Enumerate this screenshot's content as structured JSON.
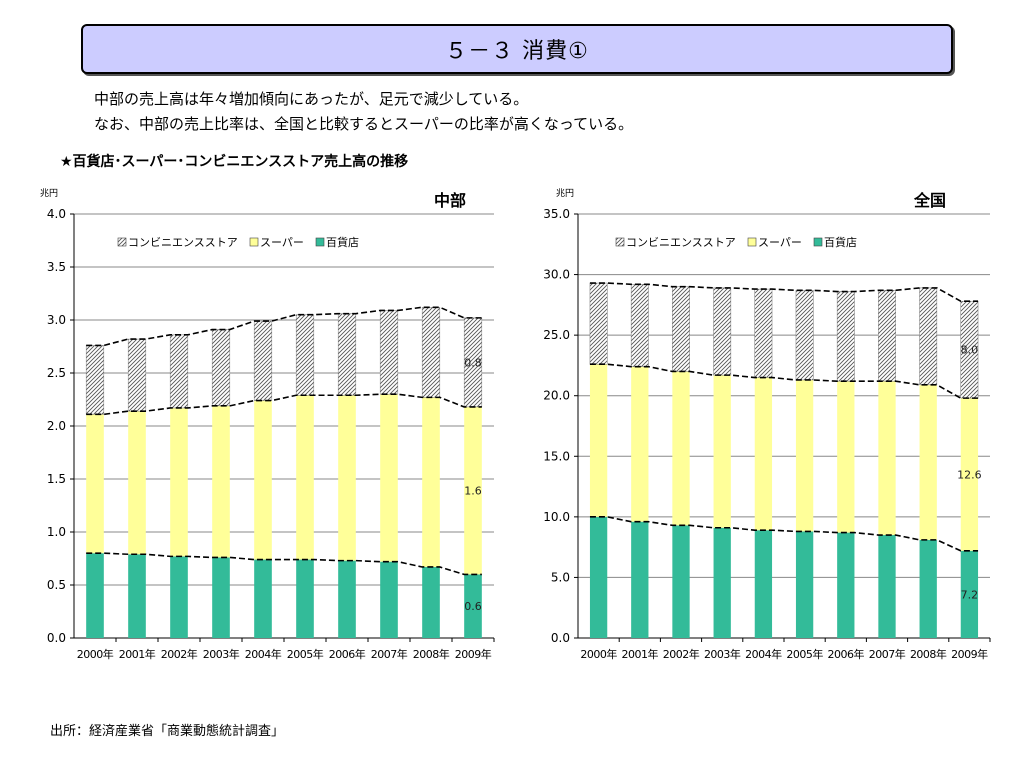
{
  "header": {
    "title": "５－３ 消費①"
  },
  "intro": {
    "line1": "中部の売上高は年々増加傾向にあったが、足元で減少している。",
    "line2": "なお、中部の売上比率は、全国と比較するとスーパーの比率が高くなっている。"
  },
  "section_title": "★百貨店･スーパー･コンビニエンスストア売上高の推移",
  "footer": {
    "source": "出所：経済産業省「商業動態統計調査」"
  },
  "colors": {
    "department": "#33bb99",
    "supermarket": "#ffff99",
    "convenience_hatch": "#666666",
    "trend_line": "#000000"
  },
  "chart_data": [
    {
      "type": "bar",
      "stacked": true,
      "title": "中部",
      "unit_label": "兆円",
      "categories": [
        "2000年",
        "2001年",
        "2002年",
        "2003年",
        "2004年",
        "2005年",
        "2006年",
        "2007年",
        "2008年",
        "2009年"
      ],
      "series": [
        {
          "name": "百貨店",
          "values": [
            0.8,
            0.79,
            0.77,
            0.76,
            0.74,
            0.74,
            0.73,
            0.72,
            0.67,
            0.6
          ]
        },
        {
          "name": "スーパー",
          "values": [
            1.31,
            1.35,
            1.4,
            1.43,
            1.5,
            1.55,
            1.56,
            1.58,
            1.6,
            1.58
          ]
        },
        {
          "name": "コンビニエンスストア",
          "values": [
            0.65,
            0.68,
            0.69,
            0.72,
            0.75,
            0.76,
            0.77,
            0.79,
            0.85,
            0.84
          ]
        }
      ],
      "data_labels": {
        "百貨店": "0.6",
        "スーパー": "1.6",
        "コンビニエンスストア": "0.8"
      },
      "ylim": [
        0,
        4.0
      ],
      "yticks": [
        "0.0",
        "0.5",
        "1.0",
        "1.5",
        "2.0",
        "2.5",
        "3.0",
        "3.5",
        "4.0"
      ],
      "legend": {
        "placement": "top-center",
        "entries": [
          "コンビニエンスストア",
          "スーパー",
          "百貨店"
        ]
      },
      "grid": true
    },
    {
      "type": "bar",
      "stacked": true,
      "title": "全国",
      "unit_label": "兆円",
      "categories": [
        "2000年",
        "2001年",
        "2002年",
        "2003年",
        "2004年",
        "2005年",
        "2006年",
        "2007年",
        "2008年",
        "2009年"
      ],
      "series": [
        {
          "name": "百貨店",
          "values": [
            10.0,
            9.6,
            9.3,
            9.1,
            8.9,
            8.8,
            8.7,
            8.5,
            8.1,
            7.2
          ]
        },
        {
          "name": "スーパー",
          "values": [
            12.6,
            12.8,
            12.7,
            12.6,
            12.6,
            12.5,
            12.5,
            12.7,
            12.8,
            12.6
          ]
        },
        {
          "name": "コンビニエンスストア",
          "values": [
            6.7,
            6.8,
            7.0,
            7.2,
            7.3,
            7.4,
            7.4,
            7.5,
            8.0,
            8.0
          ]
        }
      ],
      "data_labels": {
        "百貨店": "7.2",
        "スーパー": "12.6",
        "コンビニエンスストア": "8.0"
      },
      "ylim": [
        0,
        35.0
      ],
      "yticks": [
        "0.0",
        "5.0",
        "10.0",
        "15.0",
        "20.0",
        "25.0",
        "30.0",
        "35.0"
      ],
      "legend": {
        "placement": "top-center",
        "entries": [
          "コンビニエンスストア",
          "スーパー",
          "百貨店"
        ]
      },
      "grid": true
    }
  ]
}
